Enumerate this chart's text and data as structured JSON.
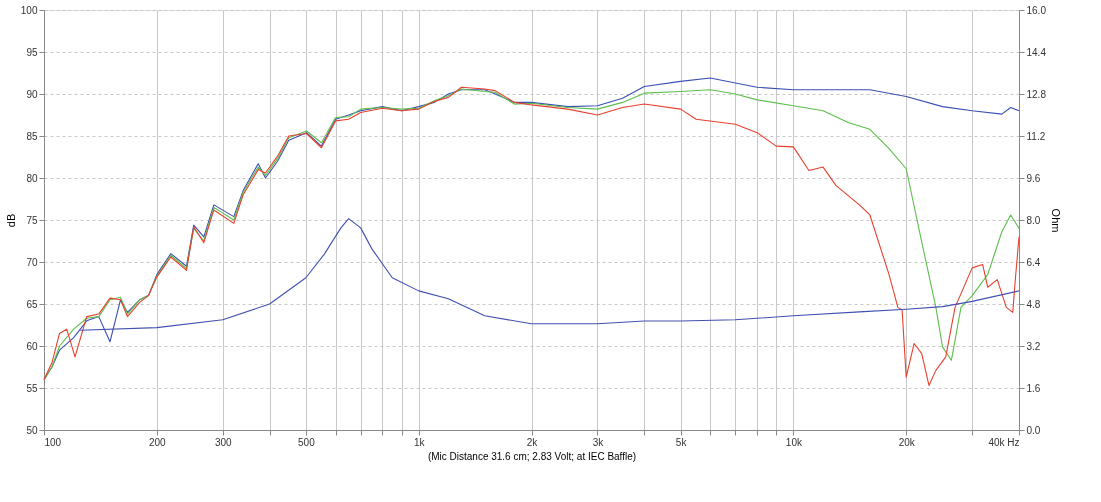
{
  "chart_data": {
    "type": "line",
    "xlabel": "(Mic Distance 31.6 cm; 2.83 Volt; at IEC Baffle)",
    "ylabel": "dB",
    "y2label": "Ohm",
    "log": "x",
    "grid": true,
    "legend": false,
    "line_style": "solid",
    "marker": "none",
    "xlim": [
      100,
      40000
    ],
    "xticks": [
      100,
      200,
      300,
      {
        "value": 400,
        "label": null
      },
      500,
      {
        "value": 600,
        "label": null
      },
      {
        "value": 700,
        "label": null
      },
      {
        "value": 800,
        "label": null
      },
      {
        "value": 900,
        "label": null
      },
      {
        "value": 1000,
        "label": "1k"
      },
      {
        "value": 2000,
        "label": "2k"
      },
      {
        "value": 3000,
        "label": "3k"
      },
      {
        "value": 4000,
        "label": null
      },
      {
        "value": 5000,
        "label": "5k"
      },
      {
        "value": 6000,
        "label": null
      },
      {
        "value": 7000,
        "label": null
      },
      {
        "value": 8000,
        "label": null
      },
      {
        "value": 9000,
        "label": null
      },
      {
        "value": 10000,
        "label": "10k"
      },
      {
        "value": 20000,
        "label": "20k"
      },
      {
        "value": 30000,
        "label": null
      },
      {
        "value": 40000,
        "label": "40k Hz"
      }
    ],
    "ylim": [
      50,
      100
    ],
    "yticks": [
      50,
      55,
      60,
      65,
      70,
      75,
      80,
      85,
      90,
      95,
      100
    ],
    "y2lim": [
      0,
      16
    ],
    "y2ticks": [
      {
        "value": 0,
        "label": "0.0"
      },
      1.6,
      3.2,
      4.8,
      6.4,
      {
        "value": 8,
        "label": "8.0"
      },
      9.6,
      11.2,
      12.8,
      14.4,
      {
        "value": 16,
        "label": "16.0"
      }
    ],
    "series": [
      {
        "color": "#3a4fb5",
        "x": [
          100,
          105,
          110,
          120,
          130,
          140,
          150,
          160,
          167,
          180,
          190,
          200,
          218,
          240,
          251,
          267,
          284,
          321,
          340,
          373,
          390,
          420,
          450,
          502,
          550,
          600,
          650,
          700,
          800,
          900,
          1000,
          1100,
          1200,
          1300,
          1500,
          1600,
          1800,
          2000,
          2500,
          3000,
          3500,
          4000,
          5000,
          6000,
          7000,
          8000,
          10000,
          12000,
          14000,
          16000,
          20000,
          25000,
          30000,
          36000,
          38000,
          40000
        ],
        "values": [
          56,
          57.5,
          59.5,
          61,
          63,
          63.5,
          60.5,
          65.5,
          64,
          65.5,
          66,
          68.5,
          71,
          69.5,
          74.4,
          73,
          76.8,
          75.4,
          78.5,
          81.7,
          80,
          82,
          84.5,
          85.4,
          83.8,
          87,
          87.5,
          88,
          88.5,
          88,
          88.5,
          89,
          90,
          90.5,
          90.5,
          90,
          89,
          89,
          88.5,
          88.6,
          89.5,
          90.9,
          91.5,
          91.9,
          91.3,
          90.8,
          90.5,
          90.5,
          90.5,
          90.5,
          89.7,
          88.5,
          88,
          87.6,
          88.4,
          88
        ]
      },
      {
        "color": "#5cbf4a",
        "x": [
          100,
          105,
          110,
          120,
          130,
          140,
          150,
          160,
          167,
          180,
          190,
          200,
          218,
          240,
          251,
          267,
          284,
          321,
          340,
          373,
          390,
          420,
          450,
          502,
          550,
          600,
          650,
          700,
          800,
          900,
          1000,
          1100,
          1200,
          1300,
          1500,
          1600,
          1800,
          2000,
          2500,
          3000,
          3500,
          4000,
          5000,
          6000,
          7000,
          8000,
          10000,
          12000,
          14000,
          16000,
          18000,
          20000,
          22000,
          24000,
          25000,
          26400,
          28000,
          30000,
          33000,
          36000,
          38000,
          40000
        ],
        "values": [
          56,
          57.5,
          60,
          62,
          63.3,
          63.5,
          65.5,
          65.8,
          63.8,
          65.5,
          66,
          68.3,
          70.8,
          69.2,
          74,
          72.5,
          76.5,
          75,
          78.3,
          81.3,
          80.3,
          82.3,
          84.8,
          85.6,
          84.2,
          87.2,
          87.3,
          88.2,
          88.4,
          88.2,
          88.3,
          89.2,
          89.8,
          90.6,
          90.3,
          90.2,
          88.8,
          88.9,
          88.4,
          88.2,
          89,
          90.1,
          90.3,
          90.5,
          90,
          89.3,
          88.6,
          88,
          86.6,
          85.8,
          83.5,
          81.1,
          72.4,
          64.6,
          59.9,
          58.3,
          64.6,
          66,
          68.5,
          73.6,
          75.6,
          74
        ]
      },
      {
        "color": "#e8402e",
        "x": [
          100,
          105,
          110,
          115,
          121,
          130,
          140,
          150,
          160,
          167,
          180,
          190,
          200,
          218,
          240,
          251,
          267,
          284,
          321,
          340,
          373,
          390,
          420,
          450,
          502,
          550,
          600,
          650,
          700,
          800,
          900,
          1000,
          1100,
          1200,
          1300,
          1500,
          1600,
          1800,
          2000,
          2500,
          3000,
          3500,
          4000,
          5000,
          5500,
          7000,
          8000,
          9000,
          10000,
          11000,
          12000,
          13000,
          15000,
          16000,
          18000,
          19000,
          19500,
          20000,
          21000,
          22000,
          23000,
          24000,
          25500,
          27000,
          30000,
          32000,
          33000,
          35000,
          37000,
          38500,
          39000,
          40000
        ],
        "values": [
          56,
          58,
          61.5,
          62,
          58.7,
          63.5,
          63.8,
          65.7,
          65.5,
          63.5,
          65.2,
          66,
          68.2,
          70.6,
          69,
          74.2,
          72.3,
          76.2,
          74.6,
          78,
          81,
          80.6,
          82.6,
          85,
          85.3,
          83.6,
          86.8,
          87,
          87.8,
          88.3,
          88,
          88.2,
          89.1,
          89.6,
          90.8,
          90.6,
          90.4,
          89,
          88.7,
          88.2,
          87.5,
          88.4,
          88.8,
          88.2,
          87,
          86.4,
          85.4,
          83.8,
          83.7,
          80.9,
          81.3,
          79.1,
          76.8,
          75.6,
          68.5,
          64.6,
          64.3,
          56.3,
          60.3,
          59.1,
          55.3,
          57.1,
          58.7,
          64.6,
          69.3,
          69.7,
          67,
          67.9,
          64.6,
          64,
          67.3,
          73
        ]
      },
      {
        "color": "#4050b0",
        "axis": "y2",
        "x": [
          125,
          200,
          300,
          400,
          500,
          560,
          620,
          650,
          700,
          750,
          850,
          1000,
          1200,
          1500,
          2000,
          3000,
          4000,
          5000,
          7000,
          10000,
          15000,
          20000,
          25000,
          30000,
          40000
        ],
        "values": [
          3.8,
          3.9,
          4.2,
          4.8,
          5.8,
          6.7,
          7.7,
          8.05,
          7.7,
          6.9,
          5.8,
          5.3,
          5.0,
          4.35,
          4.05,
          4.05,
          4.15,
          4.15,
          4.2,
          4.35,
          4.5,
          4.6,
          4.7,
          4.9,
          5.3
        ]
      }
    ]
  }
}
